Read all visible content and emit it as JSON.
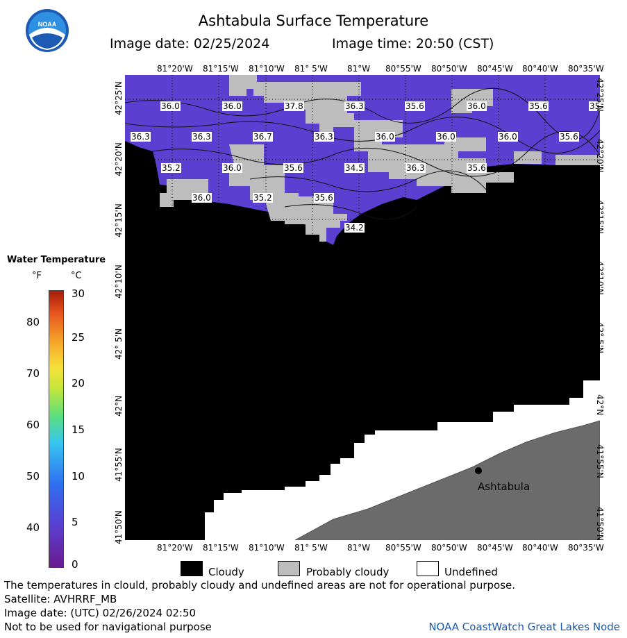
{
  "title": "Ashtabula Surface Temperature",
  "image_date_label": "Image date: 02/25/2024",
  "image_time_label": "Image time: 20:50 (CST)",
  "lon_ticks": [
    "81°20'W",
    "81°15'W",
    "81°10'W",
    "81° 5'W",
    "81°W",
    "80°55'W",
    "80°50'W",
    "80°45'W",
    "80°40'W",
    "80°35'W"
  ],
  "lat_ticks": [
    "42°25'N",
    "42°20'N",
    "42°15'N",
    "42°10'N",
    "42° 5'N",
    "42°N",
    "41°55'N",
    "41°50'N"
  ],
  "legend": {
    "title": "Water Temperature",
    "f_unit": "°F",
    "c_unit": "°C",
    "f_values": [
      "80",
      "70",
      "60",
      "50",
      "40"
    ],
    "c_values": [
      "30",
      "25",
      "20",
      "15",
      "10",
      "5",
      "0"
    ]
  },
  "temperature_labels": [
    "36.0",
    "36.0",
    "37.8",
    "36.3",
    "35.6",
    "36.0",
    "35.6",
    "35",
    "36.3",
    "36.3",
    "36.7",
    "36.3",
    "36.0",
    "36.0",
    "36.0",
    "35.6",
    "35.2",
    "36.0",
    "35.6",
    "34.5",
    "36.3",
    "35.6",
    "36.0",
    "35.2",
    "35.6",
    "34.2"
  ],
  "city_label": "Ashtabula",
  "key": {
    "cloudy": "Cloudy",
    "probably_cloudy": "Probably cloudy",
    "undefined": "Undefined"
  },
  "footer": {
    "line1": "The temperatures in clould, probably cloudy and undefined areas are not for operational purpose.",
    "line2": "Satellite: AVHRRF_MB",
    "line3": "Image date: (UTC) 02/26/2024  02:50",
    "line4": "Not to be used for navigational purpose",
    "credit": "NOAA CoastWatch Great Lakes Node"
  },
  "colors": {
    "water": "#5a3fd0",
    "cloud": "#000000",
    "probably_cloudy": "#bdbdbd",
    "land": "#6b6b6b",
    "undefined": "#ffffff",
    "credit": "#1f5aa6"
  }
}
